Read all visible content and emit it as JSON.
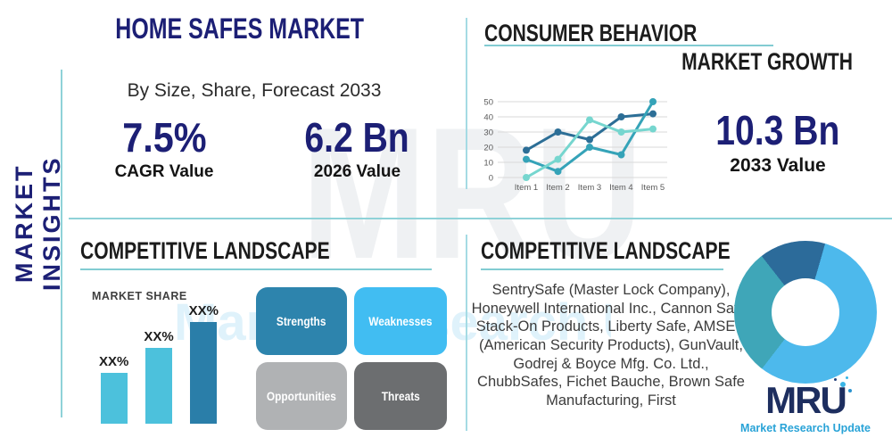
{
  "page": {
    "title": "HOME SAFES MARKET",
    "subtitle": "By Size, Share, Forecast 2033"
  },
  "sidebar": {
    "label": "MARKET INSIGHTS"
  },
  "stats": {
    "cagr": {
      "value": "7.5%",
      "label": "CAGR Value"
    },
    "base_year": {
      "value": "6.2 Bn",
      "label": "2026 Value"
    },
    "forecast": {
      "value": "10.3 Bn",
      "label": "2033 Value"
    }
  },
  "sections": {
    "consumer_behavior": "CONSUMER BEHAVIOR",
    "market_growth": "MARKET GROWTH",
    "competitive_landscape_left": "COMPETITIVE LANDSCAPE",
    "competitive_landscape_right": "COMPETITIVE LANDSCAPE"
  },
  "companies": "SentrySafe (Master Lock Company), Honeywell International Inc., Cannon Safe, Stack-On Products, Liberty Safe, AMSEC (American Security Products), GunVault, Godrej & Boyce Mfg. Co. Ltd., ChubbSafes, Fichet Bauche, Brown Safe Manufacturing, First",
  "swot": {
    "items": [
      {
        "label": "Strengths",
        "color": "#2d84ad"
      },
      {
        "label": "Weaknesses",
        "color": "#41bdf2"
      },
      {
        "label": "Opportunities",
        "color": "#b0b2b4"
      },
      {
        "label": "Threats",
        "color": "#6c6e70"
      }
    ]
  },
  "logo": {
    "name": "MRU",
    "tagline": "Market Research Update",
    "name_color": "#1d2e5f",
    "tagline_color": "#29a3d7"
  },
  "watermark": {
    "line1": "MRU",
    "line2": "Market Research Update"
  },
  "colors": {
    "navy": "#1c1f75",
    "heading_black": "#1c1c1c",
    "teal_rule": "#82ccd2",
    "divider": "#a5dbe4"
  },
  "chart_data": [
    {
      "type": "line",
      "title": "CONSUMER BEHAVIOR",
      "categories": [
        "Item 1",
        "Item 2",
        "Item 3",
        "Item 4",
        "Item 5"
      ],
      "series": [
        {
          "name": "series-1",
          "color": "#2c6e96",
          "values": [
            18,
            30,
            25,
            40,
            42
          ]
        },
        {
          "name": "series-2",
          "color": "#35a3b8",
          "values": [
            12,
            4,
            20,
            15,
            50
          ]
        },
        {
          "name": "series-3",
          "color": "#76d6cf",
          "values": [
            0,
            12,
            38,
            30,
            32
          ]
        }
      ],
      "ylim": [
        0,
        50
      ],
      "yticks": [
        0,
        10,
        20,
        30,
        40,
        50
      ],
      "grid": true,
      "legend": "none"
    },
    {
      "type": "bar",
      "title": "MARKET SHARE",
      "labels": [
        "XX%",
        "XX%",
        "XX%"
      ],
      "relative_heights": [
        57,
        85,
        114
      ],
      "colors": [
        "#4cc1dc",
        "#4cc1dc",
        "#2a7ea9"
      ],
      "ylabel": "",
      "xlabel": ""
    },
    {
      "type": "donut",
      "segments": [
        {
          "name": "navy",
          "value_pct": 15,
          "color": "#2c6b9a"
        },
        {
          "name": "light-blue",
          "value_pct": 56,
          "color": "#4db9ec"
        },
        {
          "name": "teal",
          "value_pct": 29,
          "color": "#3fa6b8"
        }
      ],
      "start_angle_deg": -38,
      "legend": "none"
    }
  ]
}
